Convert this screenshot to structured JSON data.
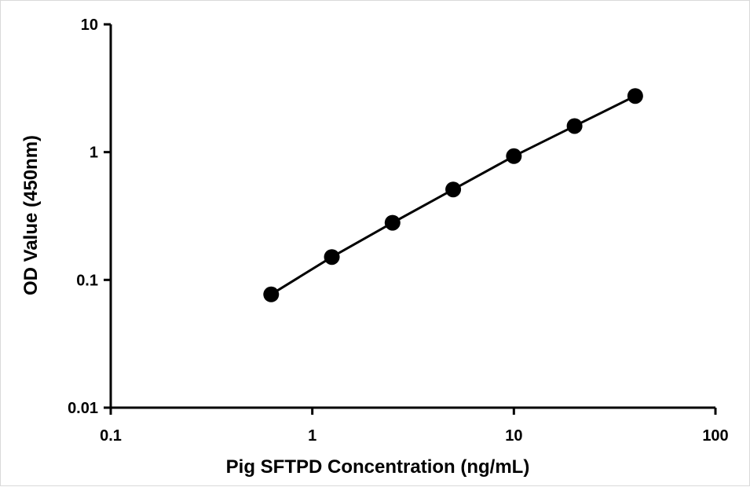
{
  "chart_data": {
    "type": "scatter",
    "title": "",
    "xlabel": "Pig SFTPD Concentration (ng/mL)",
    "ylabel": "OD Value (450nm)",
    "x_scale": "log",
    "y_scale": "log",
    "xlim": [
      0.1,
      100
    ],
    "ylim": [
      0.01,
      10
    ],
    "x_ticks": [
      "0.1",
      "1",
      "10",
      "100"
    ],
    "y_ticks": [
      "0.01",
      "0.1",
      "1",
      "10"
    ],
    "grid": false,
    "legend": "none",
    "series": [
      {
        "x": [
          0.625,
          1.25,
          2.5,
          5,
          10,
          20,
          40
        ],
        "y": [
          0.077,
          0.151,
          0.28,
          0.51,
          0.93,
          1.6,
          2.75
        ],
        "marker": "circle",
        "line": true,
        "color": "#000000"
      }
    ]
  }
}
